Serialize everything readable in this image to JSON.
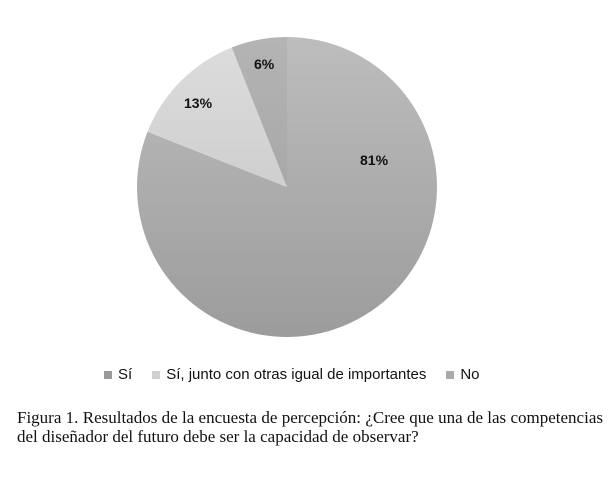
{
  "chart_data": {
    "type": "pie",
    "title": "",
    "categories": [
      "Sí",
      "Sí, junto con otras igual de importantes",
      "No"
    ],
    "values": [
      81,
      13,
      6
    ],
    "labels": [
      "81%",
      "13%",
      "6%"
    ],
    "colors": [
      "#a9a9a9",
      "#d6d6d6",
      "#b5b5b5"
    ],
    "legend_position": "bottom",
    "start_angle_deg": 0,
    "direction": "clockwise"
  },
  "legend": {
    "items": [
      {
        "label": "Sí",
        "color": "#9a9a9a"
      },
      {
        "label": "Sí, junto con otras igual de importantes",
        "color": "#d0d0d0"
      },
      {
        "label": "No",
        "color": "#aaaaaa"
      }
    ]
  },
  "caption": "Figura 1. Resultados de la encuesta de percepción: ¿Cree que una de las competencias del diseñador del futuro debe ser la capacidad de observar?"
}
